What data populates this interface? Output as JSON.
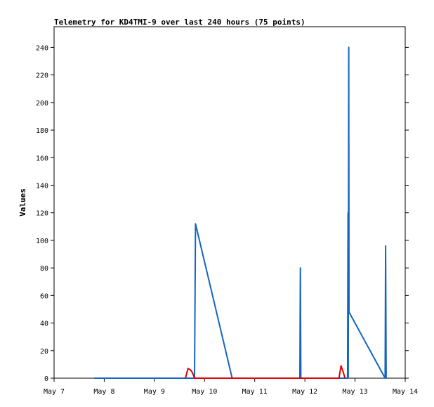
{
  "chart_data": {
    "type": "line",
    "title": "Telemetry for KD4TMI-9 over last 240 hours (75 points)",
    "xlabel": "",
    "ylabel": "Values",
    "xlim": [
      "May 7",
      "May 14"
    ],
    "ylim": [
      0,
      255
    ],
    "x_tick_labels": [
      "May 7",
      "May 8",
      "May 9",
      "May 10",
      "May 11",
      "May 12",
      "May 13",
      "May 14"
    ],
    "y_ticks": [
      0,
      20,
      40,
      60,
      80,
      100,
      120,
      140,
      160,
      180,
      200,
      220,
      240
    ],
    "grid": false,
    "legend": "none",
    "x_unit": "days since May 7",
    "series": [
      {
        "color": "#1565c0",
        "points": [
          [
            0.8,
            0
          ],
          [
            1.5,
            0
          ],
          [
            2.5,
            0
          ],
          [
            2.8,
            0
          ],
          [
            2.82,
            112
          ],
          [
            3.55,
            0
          ],
          [
            4.5,
            0
          ],
          [
            4.9,
            0
          ],
          [
            4.91,
            80
          ],
          [
            4.92,
            0
          ],
          [
            5.5,
            0
          ],
          [
            5.85,
            0
          ],
          [
            5.86,
            120
          ],
          [
            5.865,
            0
          ],
          [
            5.875,
            240
          ],
          [
            5.88,
            48
          ],
          [
            6.6,
            0
          ],
          [
            6.61,
            96
          ],
          [
            6.62,
            0
          ]
        ]
      },
      {
        "color": "#e00000",
        "points": [
          [
            2.62,
            0
          ],
          [
            2.67,
            7
          ],
          [
            2.72,
            6
          ],
          [
            2.76,
            4
          ],
          [
            2.8,
            0
          ],
          [
            5.68,
            0
          ],
          [
            5.72,
            9
          ],
          [
            5.76,
            5
          ],
          [
            5.8,
            0
          ]
        ]
      }
    ]
  }
}
